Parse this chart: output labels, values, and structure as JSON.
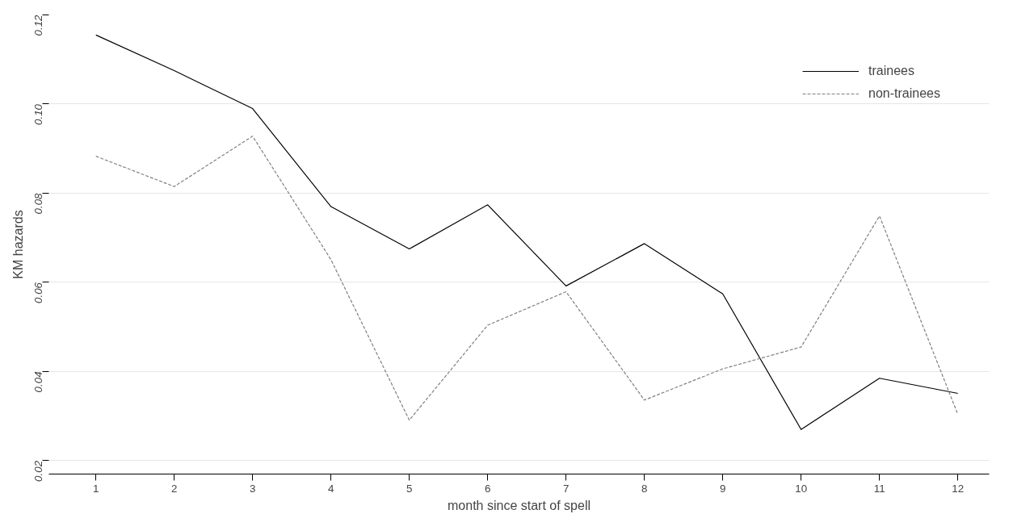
{
  "chart_data": {
    "type": "line",
    "xlabel": "month since start of spell",
    "ylabel": "KM hazards",
    "x": [
      1,
      2,
      3,
      4,
      5,
      6,
      7,
      8,
      9,
      10,
      11,
      12
    ],
    "series": [
      {
        "name": "trainees",
        "color": "#000000",
        "line_style": "solid",
        "values": [
          0.1155,
          0.1075,
          0.099,
          0.077,
          0.0675,
          0.0774,
          0.0592,
          0.0687,
          0.0574,
          0.027,
          0.0385,
          0.0351
        ]
      },
      {
        "name": "non-trainees",
        "color": "#808080",
        "line_style": "dashed",
        "values": [
          0.0883,
          0.0815,
          0.0928,
          0.0651,
          0.0291,
          0.0504,
          0.0579,
          0.0336,
          0.0406,
          0.0455,
          0.0749,
          0.0304
        ]
      }
    ],
    "xlim": [
      0.4,
      12.4
    ],
    "ylim": [
      0.017,
      0.12
    ],
    "xticks": [
      1,
      2,
      3,
      4,
      5,
      6,
      7,
      8,
      9,
      10,
      11,
      12
    ],
    "yticks": [
      {
        "value": 0.02,
        "label": "0.02"
      },
      {
        "value": 0.04,
        "label": "0.04"
      },
      {
        "value": 0.06,
        "label": "0.06"
      },
      {
        "value": 0.08,
        "label": "0.08"
      },
      {
        "value": 0.1,
        "label": "0.10"
      },
      {
        "value": 0.12,
        "label": "0.12"
      }
    ],
    "grid": "y",
    "legend": "top right",
    "marker": "none"
  }
}
